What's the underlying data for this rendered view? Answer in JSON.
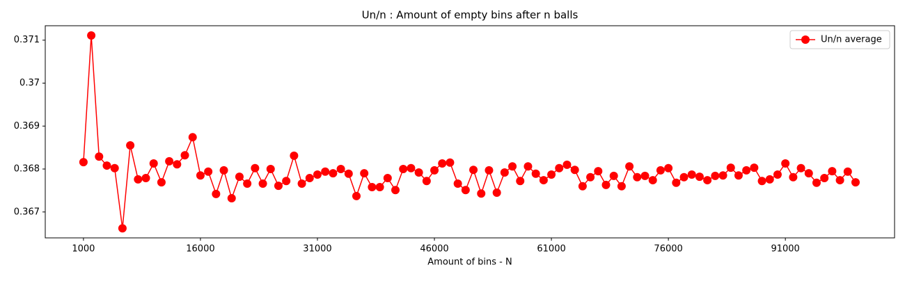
{
  "chart_data": {
    "type": "line",
    "title": "Un/n : Amount of empty bins after n balls",
    "x_label": "Amount of bins - N",
    "x": [
      1000,
      2000,
      3000,
      4000,
      5000,
      6000,
      7000,
      8000,
      9000,
      10000,
      11000,
      12000,
      13000,
      14000,
      15000,
      16000,
      17000,
      18000,
      19000,
      20000,
      21000,
      22000,
      23000,
      24000,
      25000,
      26000,
      27000,
      28000,
      29000,
      30000,
      31000,
      32000,
      33000,
      34000,
      35000,
      36000,
      37000,
      38000,
      39000,
      40000,
      41000,
      42000,
      43000,
      44000,
      45000,
      46000,
      47000,
      48000,
      49000,
      50000,
      51000,
      52000,
      53000,
      54000,
      55000,
      56000,
      57000,
      58000,
      59000,
      60000,
      61000,
      62000,
      63000,
      64000,
      65000,
      66000,
      67000,
      68000,
      69000,
      70000,
      71000,
      72000,
      73000,
      74000,
      75000,
      76000,
      77000,
      78000,
      79000,
      80000,
      81000,
      82000,
      83000,
      84000,
      85000,
      86000,
      87000,
      88000,
      89000,
      90000,
      91000,
      92000,
      93000,
      94000,
      95000,
      96000,
      97000,
      98000,
      99000,
      100000
    ],
    "series": [
      {
        "name": "Un/n average",
        "color": "#ff0000",
        "values": [
          0.36816,
          0.37111,
          0.36829,
          0.36808,
          0.36802,
          0.36662,
          0.36855,
          0.36776,
          0.36779,
          0.36813,
          0.36769,
          0.36818,
          0.36811,
          0.36832,
          0.36874,
          0.36785,
          0.36794,
          0.36742,
          0.36797,
          0.36732,
          0.36782,
          0.36766,
          0.36802,
          0.36766,
          0.368,
          0.36761,
          0.36772,
          0.36831,
          0.36766,
          0.36779,
          0.36787,
          0.36794,
          0.3679,
          0.368,
          0.36789,
          0.36737,
          0.3679,
          0.36758,
          0.36758,
          0.36779,
          0.36751,
          0.368,
          0.36802,
          0.36792,
          0.36772,
          0.36797,
          0.36813,
          0.36815,
          0.36766,
          0.36751,
          0.36798,
          0.36743,
          0.36797,
          0.36745,
          0.36792,
          0.36806,
          0.36772,
          0.36806,
          0.36789,
          0.36774,
          0.36787,
          0.36802,
          0.3681,
          0.36798,
          0.3676,
          0.36781,
          0.36795,
          0.36763,
          0.36784,
          0.3676,
          0.36806,
          0.36781,
          0.36784,
          0.36774,
          0.36797,
          0.36802,
          0.36768,
          0.36781,
          0.36787,
          0.36782,
          0.36774,
          0.36784,
          0.36785,
          0.36803,
          0.36785,
          0.36797,
          0.36803,
          0.36772,
          0.36776,
          0.36787,
          0.36813,
          0.36781,
          0.36802,
          0.3679,
          0.36768,
          0.36779,
          0.36795,
          0.36774,
          0.36794,
          0.36769
        ]
      }
    ],
    "xlim": [
      -3900,
      105000
    ],
    "xticks": [
      1000,
      16000,
      31000,
      46000,
      61000,
      76000,
      91000
    ],
    "ylim": [
      0.366397,
      0.371336
    ],
    "yticks": [
      0.367,
      0.368,
      0.369,
      0.37,
      0.371
    ],
    "legend": "upper right"
  }
}
